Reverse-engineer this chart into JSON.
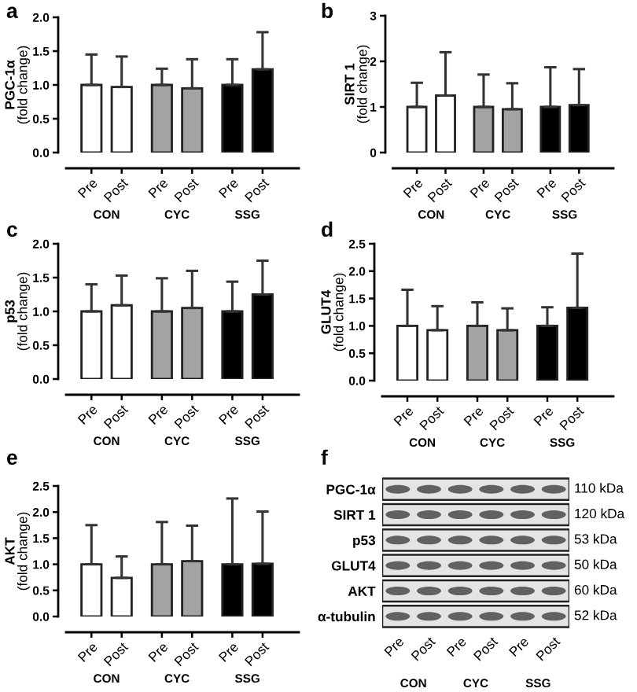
{
  "chart_data": [
    {
      "type": "bar",
      "title": "a",
      "ylabel": "PGC-1α\n(fold change)",
      "categories": [
        "Pre",
        "Post",
        "Pre",
        "Post",
        "Pre",
        "Post"
      ],
      "values": [
        1.0,
        0.97,
        1.0,
        0.95,
        1.0,
        1.23
      ],
      "colors": [
        "#ffffff",
        "#ffffff",
        "#a3a3a3",
        "#a3a3a3",
        "#000000",
        "#000000"
      ],
      "errors": [
        [
          1.0,
          1.45
        ],
        [
          0.97,
          1.42
        ],
        [
          1.0,
          1.24
        ],
        [
          0.95,
          1.38
        ],
        [
          1.0,
          1.38
        ],
        [
          1.23,
          1.78
        ]
      ],
      "ylim": [
        0,
        2.0
      ],
      "yticks": [
        {
          "value": 0,
          "label": "0.0"
        },
        0.5,
        {
          "value": 1.0,
          "label": "1.0"
        },
        1.5,
        {
          "value": 2.0,
          "label": "2.0"
        }
      ],
      "annotations": [
        "CON",
        "CYC",
        "SSG"
      ]
    },
    {
      "type": "bar",
      "title": "b",
      "ylabel": "SIRT 1\n(fold change)",
      "categories": [
        "Pre",
        "Post",
        "Pre",
        "Post",
        "Pre",
        "Post"
      ],
      "values": [
        1.0,
        1.25,
        1.0,
        0.95,
        1.0,
        1.04
      ],
      "colors": [
        "#ffffff",
        "#ffffff",
        "#a3a3a3",
        "#a3a3a3",
        "#000000",
        "#000000"
      ],
      "errors": [
        [
          1.0,
          1.53
        ],
        [
          1.25,
          2.2
        ],
        [
          1.0,
          1.71
        ],
        [
          0.95,
          1.52
        ],
        [
          1.0,
          1.87
        ],
        [
          1.04,
          1.83
        ]
      ],
      "ylim": [
        0,
        3
      ],
      "yticks": [
        0,
        1,
        2,
        3
      ],
      "annotations": [
        "CON",
        "CYC",
        "SSG"
      ]
    },
    {
      "type": "bar",
      "title": "c",
      "ylabel": "p53\n(fold change)",
      "categories": [
        "Pre",
        "Post",
        "Pre",
        "Post",
        "Pre",
        "Post"
      ],
      "values": [
        1.0,
        1.09,
        1.0,
        1.05,
        1.0,
        1.25
      ],
      "colors": [
        "#ffffff",
        "#ffffff",
        "#a3a3a3",
        "#a3a3a3",
        "#000000",
        "#000000"
      ],
      "errors": [
        [
          1.0,
          1.4
        ],
        [
          1.09,
          1.53
        ],
        [
          1.0,
          1.49
        ],
        [
          1.05,
          1.6
        ],
        [
          1.0,
          1.44
        ],
        [
          1.25,
          1.75
        ]
      ],
      "ylim": [
        0,
        2.0
      ],
      "yticks": [
        {
          "value": 0,
          "label": "0.0"
        },
        0.5,
        {
          "value": 1.0,
          "label": "1.0"
        },
        1.5,
        {
          "value": 2.0,
          "label": "2.0"
        }
      ],
      "annotations": [
        "CON",
        "CYC",
        "SSG"
      ]
    },
    {
      "type": "bar",
      "title": "d",
      "ylabel": "GLUT4\n(fold change)",
      "categories": [
        "Pre",
        "Post",
        "Pre",
        "Post",
        "Pre",
        "Post"
      ],
      "values": [
        1.0,
        0.92,
        1.0,
        0.92,
        1.0,
        1.33
      ],
      "colors": [
        "#ffffff",
        "#ffffff",
        "#a3a3a3",
        "#a3a3a3",
        "#000000",
        "#000000"
      ],
      "errors": [
        [
          1.0,
          1.66
        ],
        [
          0.92,
          1.36
        ],
        [
          1.0,
          1.43
        ],
        [
          0.92,
          1.32
        ],
        [
          1.0,
          1.34
        ],
        [
          1.33,
          2.32
        ]
      ],
      "ylim": [
        0,
        2.5
      ],
      "yticks": [
        {
          "value": 0,
          "label": "0.0"
        },
        0.5,
        {
          "value": 1.0,
          "label": "1.0"
        },
        1.5,
        {
          "value": 2.0,
          "label": "2.0"
        },
        2.5
      ],
      "annotations": [
        "CON",
        "CYC",
        "SSG"
      ]
    },
    {
      "type": "bar",
      "title": "e",
      "ylabel": "AKT\n(fold change)",
      "categories": [
        "Pre",
        "Post",
        "Pre",
        "Post",
        "Pre",
        "Post"
      ],
      "values": [
        1.0,
        0.74,
        1.0,
        1.06,
        1.0,
        1.01
      ],
      "colors": [
        "#ffffff",
        "#ffffff",
        "#a3a3a3",
        "#a3a3a3",
        "#000000",
        "#000000"
      ],
      "errors": [
        [
          1.0,
          1.75
        ],
        [
          0.74,
          1.15
        ],
        [
          1.0,
          1.81
        ],
        [
          1.06,
          1.74
        ],
        [
          1.0,
          2.26
        ],
        [
          1.01,
          2.01
        ]
      ],
      "ylim": [
        0,
        2.5
      ],
      "yticks": [
        {
          "value": 0,
          "label": "0.0"
        },
        0.5,
        {
          "value": 1.0,
          "label": "1.0"
        },
        1.5,
        {
          "value": 2.0,
          "label": "2.0"
        },
        2.5
      ],
      "annotations": [
        "CON",
        "CYC",
        "SSG"
      ]
    },
    {
      "type": "other",
      "title": "f",
      "categories": [
        "Pre",
        "Post",
        "Pre",
        "Post",
        "Pre",
        "Post"
      ],
      "y_categories": [
        "PGC-1α",
        "SIRT 1",
        "p53",
        "GLUT4",
        "AKT",
        "α-tubulin"
      ],
      "y2_categories": [
        "110 kDa",
        "120 kDa",
        "53 kDa",
        "50 kDa",
        "60 kDa",
        "52 kDa"
      ],
      "annotations": [
        "CON",
        "CYC",
        "SSG"
      ]
    }
  ]
}
